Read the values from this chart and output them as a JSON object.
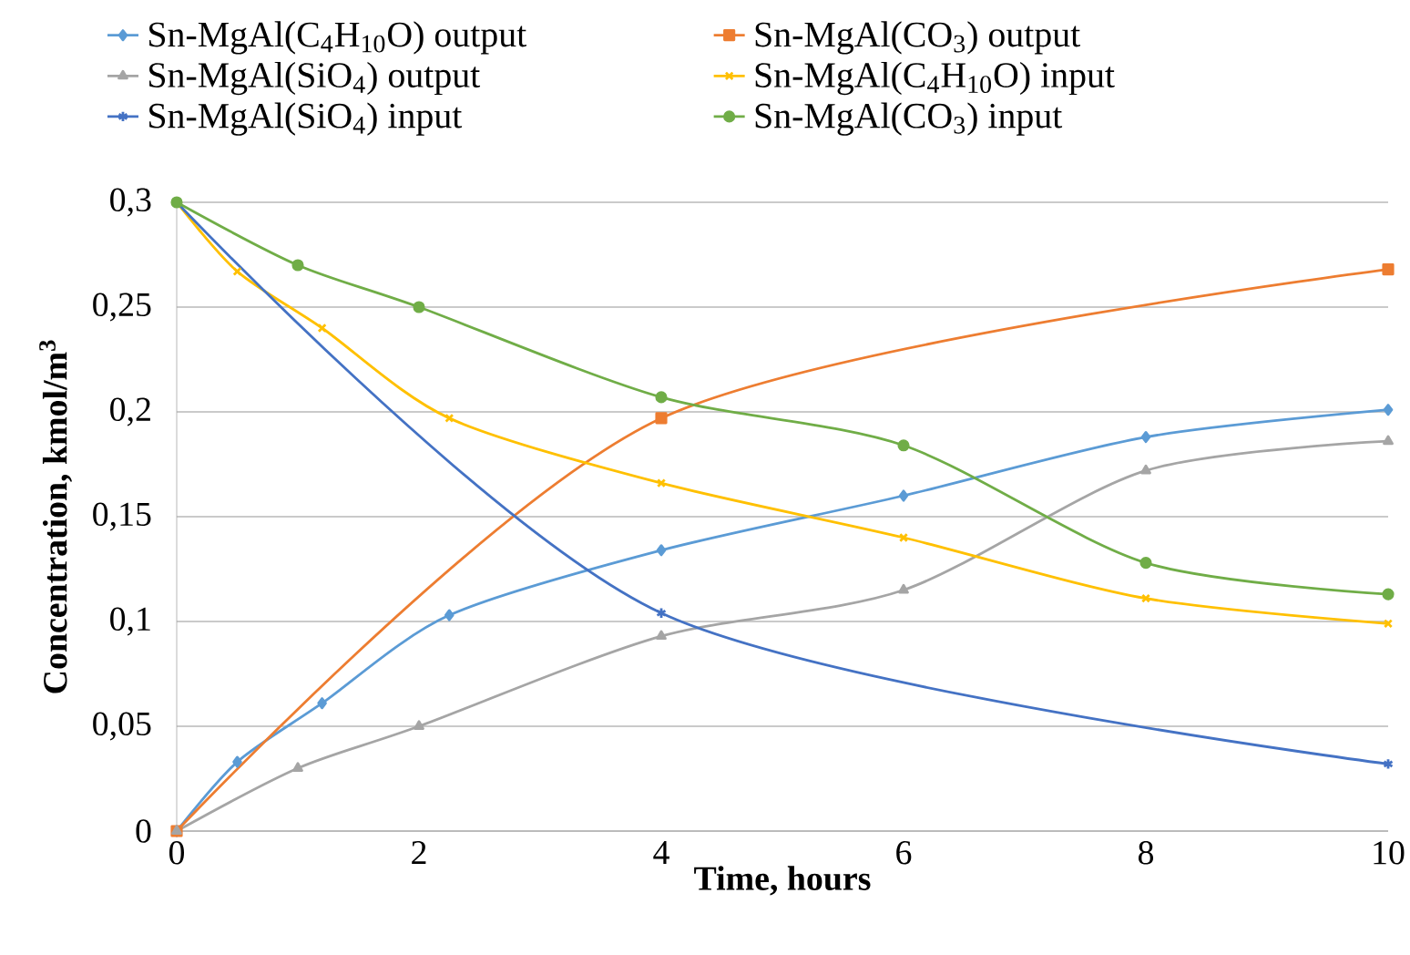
{
  "chart_data": {
    "type": "line",
    "xlabel": "Time, hours",
    "ylabel": "Concentration, kmol/m$^{3}$",
    "xlim": [
      0,
      10
    ],
    "xticks": [
      0,
      2,
      4,
      6,
      8,
      10
    ],
    "ylim": [
      0,
      0.3
    ],
    "yticks": [
      {
        "value": 0,
        "label": "0"
      },
      {
        "value": 0.05,
        "label": "0,05"
      },
      {
        "value": 0.1,
        "label": "0,1"
      },
      {
        "value": 0.15,
        "label": "0,15"
      },
      {
        "value": 0.2,
        "label": "0,2"
      },
      {
        "value": 0.25,
        "label": "0,25"
      },
      {
        "value": 0.3,
        "label": "0,3"
      }
    ],
    "grid": "y",
    "legend": "top",
    "series": [
      {
        "name": "Sn-MgAl(C$_{4}$H$_{10}$O) output",
        "color": "#5b9bd5",
        "marker": "diamond",
        "x": [
          0,
          0.5,
          1.2,
          2.25,
          4,
          6,
          8,
          10
        ],
        "values": [
          0,
          0.033,
          0.061,
          0.103,
          0.134,
          0.16,
          0.188,
          0.201
        ]
      },
      {
        "name": "Sn-MgAl(CO$_{3}$) output",
        "color": "#ed7d31",
        "marker": "square",
        "x": [
          0,
          4,
          10
        ],
        "values": [
          0,
          0.197,
          0.268
        ]
      },
      {
        "name": "Sn-MgAl(SiO$_{4}$) output",
        "color": "#a5a5a5",
        "marker": "triangle",
        "x": [
          0,
          1,
          2,
          4,
          6,
          8,
          10
        ],
        "values": [
          0,
          0.03,
          0.05,
          0.093,
          0.115,
          0.172,
          0.186
        ]
      },
      {
        "name": "Sn-MgAl(C$_{4}$H$_{10}$O) input",
        "color": "#ffc000",
        "marker": "cross",
        "x": [
          0,
          0.5,
          1.2,
          2.25,
          4,
          6,
          8,
          10
        ],
        "values": [
          0.3,
          0.267,
          0.24,
          0.197,
          0.166,
          0.14,
          0.111,
          0.099
        ]
      },
      {
        "name": "Sn-MgAl(SiO$_{4}$) input",
        "color": "#4472c4",
        "marker": "cross",
        "x": [
          0,
          4,
          10
        ],
        "values": [
          0.3,
          0.104,
          0.032
        ]
      },
      {
        "name": "Sn-MgAl(CO$_{3}$) input",
        "color": "#70ad47",
        "marker": "circle",
        "x": [
          0,
          1,
          2,
          4,
          6,
          8,
          10
        ],
        "values": [
          0.3,
          0.27,
          0.25,
          0.207,
          0.184,
          0.128,
          0.113
        ]
      }
    ]
  }
}
